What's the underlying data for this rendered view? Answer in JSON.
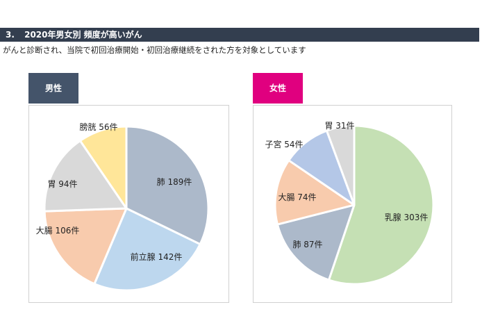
{
  "section": {
    "number": "3.",
    "title": "2020年男女別 頻度が高いがん"
  },
  "subtitle": "がんと診断され、当院で初回治療開始・初回治療継続をされた方を対象としています",
  "tabs": {
    "male": "男性",
    "female": "女性"
  },
  "chart_data": [
    {
      "type": "pie",
      "title": "男性",
      "unit": "件",
      "slices": [
        {
          "name": "肺",
          "value": 189,
          "label": "肺 189件",
          "color": "#acb9ca"
        },
        {
          "name": "前立腺",
          "value": 142,
          "label": "前立腺 142件",
          "color": "#bdd7ee"
        },
        {
          "name": "大腸",
          "value": 106,
          "label": "大腸 106件",
          "color": "#f8cbad"
        },
        {
          "name": "胃",
          "value": 94,
          "label": "胃 94件",
          "color": "#d9d9d9"
        },
        {
          "name": "膀胱",
          "value": 56,
          "label": "膀胱 56件",
          "color": "#ffe699"
        }
      ]
    },
    {
      "type": "pie",
      "title": "女性",
      "unit": "件",
      "slices": [
        {
          "name": "乳腺",
          "value": 303,
          "label": "乳腺 303件",
          "color": "#c5e0b4"
        },
        {
          "name": "肺",
          "value": 87,
          "label": "肺 87件",
          "color": "#acb9ca"
        },
        {
          "name": "大腸",
          "value": 74,
          "label": "大腸 74件",
          "color": "#f8cbad"
        },
        {
          "name": "子宮",
          "value": 54,
          "label": "子宮 54件",
          "color": "#b4c7e7"
        },
        {
          "name": "胃",
          "value": 31,
          "label": "胃 31件",
          "color": "#d9d9d9"
        }
      ]
    }
  ]
}
